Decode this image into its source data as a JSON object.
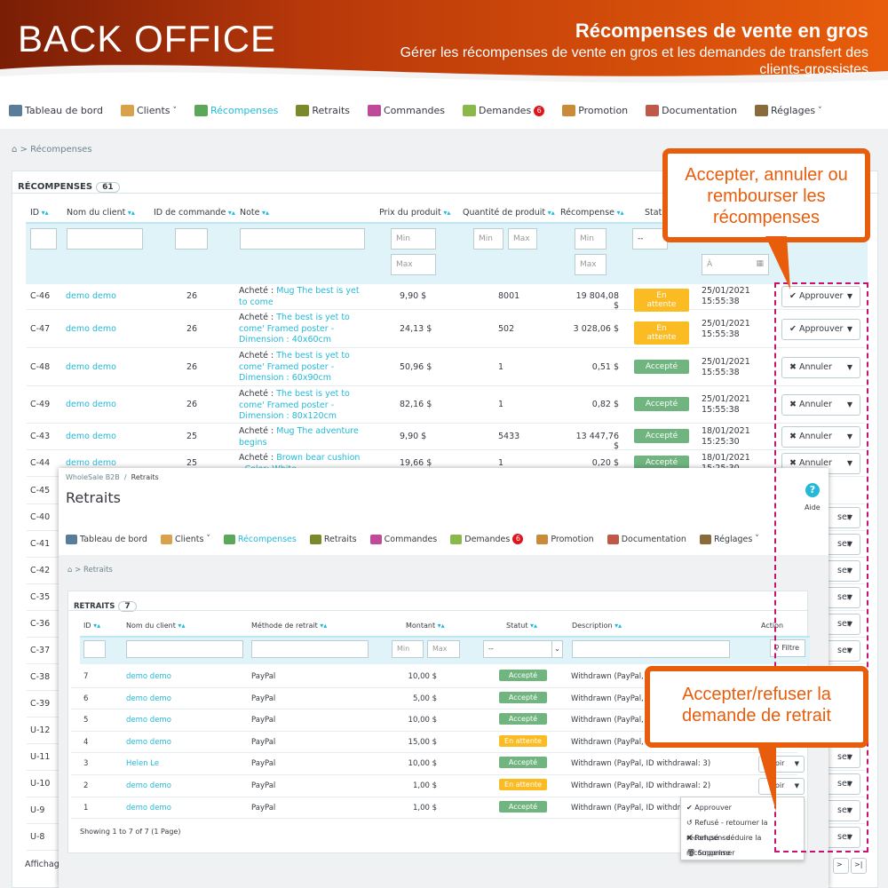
{
  "banner": {
    "brand": "BACK OFFICE",
    "title": "Récompenses de vente en gros",
    "subtitle": "Gérer les récompenses de vente en gros et les demandes de transfert des clients-grossistes"
  },
  "nav": {
    "items": [
      {
        "label": "Tableau de bord",
        "icon": "dashboard-icon",
        "color": "#5a7c9b"
      },
      {
        "label": "Clients",
        "icon": "customers-icon",
        "caret": "˅",
        "color": "#d9a24a"
      },
      {
        "label": "Récompenses",
        "icon": "rewards-icon",
        "active": true,
        "color": "#5ba85b"
      },
      {
        "label": "Retraits",
        "icon": "withdrawals-icon",
        "color": "#7a8a2a"
      },
      {
        "label": "Commandes",
        "icon": "orders-icon",
        "color": "#c04a9a"
      },
      {
        "label": "Demandes",
        "icon": "requests-icon",
        "badge": "6",
        "color": "#8ab84a"
      },
      {
        "label": "Promotion",
        "icon": "promotion-icon",
        "color": "#c98a3a"
      },
      {
        "label": "Documentation",
        "icon": "documentation-icon",
        "color": "#c0584a"
      },
      {
        "label": "Réglages",
        "icon": "settings-icon",
        "caret": "˅",
        "color": "#8a6a3a"
      }
    ]
  },
  "rewards": {
    "breadcrumb": "Récompenses",
    "panel_title": "RÉCOMPENSES",
    "count": "61",
    "columns": [
      "ID",
      "Nom du client",
      "ID de commande",
      "Note",
      "Prix du produit",
      "Quantité de produit",
      "Récompense",
      "Statut"
    ],
    "filters": {
      "min": "Min",
      "max": "Max",
      "status": "--",
      "date": "À"
    },
    "rows": [
      {
        "id": "C-46",
        "client": "demo demo",
        "order": "26",
        "note_prefix": "Acheté :",
        "note_link": "Mug The best is yet to come",
        "price": "9,90 $",
        "qty": "8001",
        "reward": "19 804,08 $",
        "status": "En attente",
        "status_type": "wait",
        "date": "25/01/2021",
        "time": "15:55:38",
        "action": "Approuver"
      },
      {
        "id": "C-47",
        "client": "demo demo",
        "order": "26",
        "note_prefix": "Acheté :",
        "note_link": "The best is yet to come' Framed poster - Dimension : 40x60cm",
        "price": "24,13 $",
        "qty": "502",
        "reward": "3 028,06 $",
        "status": "En attente",
        "status_type": "wait",
        "date": "25/01/2021",
        "time": "15:55:38",
        "action": "Approuver"
      },
      {
        "id": "C-48",
        "client": "demo demo",
        "order": "26",
        "note_prefix": "Acheté :",
        "note_link": "The best is yet to come' Framed poster - Dimension : 60x90cm",
        "price": "50,96 $",
        "qty": "1",
        "reward": "0,51 $",
        "status": "Accepté",
        "status_type": "ok",
        "date": "25/01/2021",
        "time": "15:55:38",
        "action": "Annuler"
      },
      {
        "id": "C-49",
        "client": "demo demo",
        "order": "26",
        "note_prefix": "Acheté :",
        "note_link": "The best is yet to come' Framed poster - Dimension : 80x120cm",
        "price": "82,16 $",
        "qty": "1",
        "reward": "0,82 $",
        "status": "Accepté",
        "status_type": "ok",
        "date": "25/01/2021",
        "time": "15:55:38",
        "action": "Annuler"
      },
      {
        "id": "C-43",
        "client": "demo demo",
        "order": "25",
        "note_prefix": "Acheté :",
        "note_link": "Mug The adventure begins",
        "price": "9,90 $",
        "qty": "5433",
        "reward": "13 447,76 $",
        "status": "Accepté",
        "status_type": "ok",
        "date": "18/01/2021",
        "time": "15:25:30",
        "action": "Annuler"
      },
      {
        "id": "C-44",
        "client": "demo demo",
        "order": "25",
        "note_prefix": "Acheté :",
        "note_link": "Brown bear cushion - Color: White",
        "price": "19,66 $",
        "qty": "1",
        "reward": "0,20 $",
        "status": "Accepté",
        "status_type": "ok",
        "date": "18/01/2021",
        "time": "15:25:30",
        "action": "Annuler"
      }
    ],
    "hidden_ids": [
      "C-45",
      "C-40",
      "C-41",
      "C-42",
      "C-35",
      "C-36",
      "C-37",
      "C-38",
      "C-39",
      "U-12",
      "U-11",
      "U-10",
      "U-9",
      "U-8"
    ],
    "hidden_action": "ser",
    "footer": "Affichage",
    "pager": [
      ">",
      ">|"
    ]
  },
  "withdrawals": {
    "breadcrumb_top": [
      "WholeSale B2B",
      "/",
      "Retraits"
    ],
    "page_title": "Retraits",
    "help": "Aide",
    "breadcrumb": "Retraits",
    "panel_title": "RETRAITS",
    "count": "7",
    "columns": [
      "ID",
      "Nom du client",
      "Méthode de retrait",
      "Montant",
      "Statut",
      "Description",
      "Action"
    ],
    "filters": {
      "min": "Min",
      "max": "Max",
      "status": "--",
      "button": "Filtre"
    },
    "rows": [
      {
        "id": "7",
        "client": "demo demo",
        "method": "PayPal",
        "amount": "10,00 $",
        "status": "Accepté",
        "status_type": "ok",
        "desc": "Withdrawn (PayPal, ID wi"
      },
      {
        "id": "6",
        "client": "demo demo",
        "method": "PayPal",
        "amount": "5,00 $",
        "status": "Accepté",
        "status_type": "ok",
        "desc": "Withdrawn (PayPal, ID wi"
      },
      {
        "id": "5",
        "client": "demo demo",
        "method": "PayPal",
        "amount": "10,00 $",
        "status": "Accepté",
        "status_type": "ok",
        "desc": "Withdrawn (PayPal, ID wi"
      },
      {
        "id": "4",
        "client": "demo demo",
        "method": "PayPal",
        "amount": "15,00 $",
        "status": "En attente",
        "status_type": "wait",
        "desc": "Withdrawn (PayPal, ID wi"
      },
      {
        "id": "3",
        "client": "Helen Le",
        "method": "PayPal",
        "amount": "10,00 $",
        "status": "Accepté",
        "status_type": "ok",
        "desc": "Withdrawn (PayPal, ID withdrawal: 3)",
        "action": "oir"
      },
      {
        "id": "2",
        "client": "demo demo",
        "method": "PayPal",
        "amount": "1,00 $",
        "status": "En attente",
        "status_type": "wait",
        "desc": "Withdrawn (PayPal, ID withdrawal: 2)",
        "action": "oir"
      },
      {
        "id": "1",
        "client": "demo demo",
        "method": "PayPal",
        "amount": "1,00 $",
        "status": "Accepté",
        "status_type": "ok",
        "desc": "Withdrawn (PayPal, ID withdrawal: 1"
      }
    ],
    "footer": "Showing 1 to 7 of 7 (1 Page)",
    "menu": [
      "Approuver",
      "Refusé - retourner la récompense",
      "Refusé - déduire la récompense",
      "Supprimer"
    ]
  },
  "callouts": {
    "top": "Accepter, annuler ou rembourser les récompenses",
    "bottom": "Accepter/refuser la demande de retrait"
  },
  "colors": {
    "accent": "#e85d0b",
    "link": "#25b9d7",
    "pending": "#fbbb22",
    "accepted": "#70b580",
    "dash": "#c4146f"
  }
}
